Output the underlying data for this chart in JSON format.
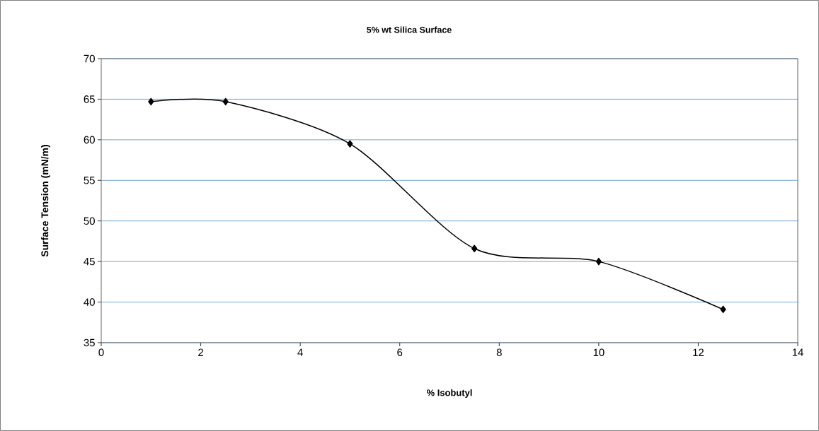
{
  "chart_data": {
    "type": "line",
    "title": "5% wt Silica Surface",
    "xlabel": "% Isobutyl",
    "ylabel": "Surface Tension (mN/m)",
    "x": [
      1,
      2.5,
      5,
      7.5,
      10,
      12.5
    ],
    "series": [
      {
        "color": "#000000",
        "values": [
          64.7,
          64.7,
          59.5,
          46.6,
          45.0,
          39.1
        ]
      }
    ],
    "xlim": [
      0,
      14
    ],
    "xticks": [
      0,
      2,
      4,
      6,
      8,
      10,
      12,
      14
    ],
    "ylim": [
      35,
      70
    ],
    "yticks": [
      35,
      40,
      45,
      50,
      55,
      60,
      65,
      70
    ],
    "grid": "y",
    "marker": "diamond",
    "line_style": "solid"
  }
}
